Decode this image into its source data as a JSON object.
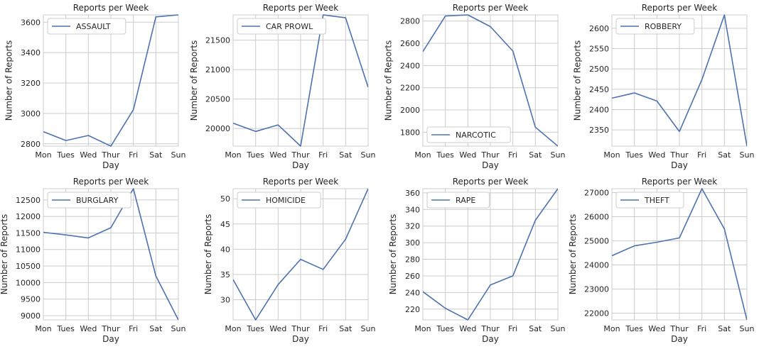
{
  "chart_data": [
    {
      "type": "line",
      "title": "Reports per Week",
      "xlabel": "Day",
      "ylabel": "Number of Reports",
      "categories": [
        "Mon",
        "Tues",
        "Wed",
        "Thur",
        "Fri",
        "Sat",
        "Sun"
      ],
      "series": [
        {
          "name": "ASSAULT",
          "values": [
            2880,
            2822,
            2855,
            2785,
            3025,
            3635,
            3648
          ]
        }
      ],
      "ylim": [
        2785,
        3648
      ],
      "yticks": [
        2800,
        3000,
        3200,
        3400,
        3600
      ],
      "legend": "top-left",
      "grid": true
    },
    {
      "type": "line",
      "title": "Reports per Week",
      "xlabel": "Day",
      "ylabel": "Number of Reports",
      "categories": [
        "Mon",
        "Tues",
        "Wed",
        "Thur",
        "Fri",
        "Sat",
        "Sun"
      ],
      "series": [
        {
          "name": "CAR PROWL",
          "values": [
            20090,
            19950,
            20060,
            19700,
            21930,
            21880,
            20700
          ]
        }
      ],
      "ylim": [
        19700,
        21930
      ],
      "yticks": [
        20000,
        20500,
        21000,
        21500
      ],
      "legend": "top-left",
      "grid": true
    },
    {
      "type": "line",
      "title": "Reports per Week",
      "xlabel": "Day",
      "ylabel": "Number of Reports",
      "categories": [
        "Mon",
        "Tues",
        "Wed",
        "Thur",
        "Fri",
        "Sat",
        "Sun"
      ],
      "series": [
        {
          "name": "NARCOTIC",
          "values": [
            2525,
            2845,
            2855,
            2750,
            2530,
            1845,
            1675
          ]
        }
      ],
      "ylim": [
        1675,
        2855
      ],
      "yticks": [
        1800,
        2000,
        2200,
        2400,
        2600,
        2800
      ],
      "legend": "bottom-left",
      "grid": true
    },
    {
      "type": "line",
      "title": "Reports per Week",
      "xlabel": "Day",
      "ylabel": "Number of Reports",
      "categories": [
        "Mon",
        "Tues",
        "Wed",
        "Thur",
        "Fri",
        "Sat",
        "Sun"
      ],
      "series": [
        {
          "name": "ROBBERY",
          "values": [
            2428,
            2441,
            2421,
            2346,
            2474,
            2633,
            2310
          ]
        }
      ],
      "ylim": [
        2310,
        2633
      ],
      "yticks": [
        2350,
        2400,
        2450,
        2500,
        2550,
        2600
      ],
      "legend": "top-left",
      "grid": true
    },
    {
      "type": "line",
      "title": "Reports per Week",
      "xlabel": "Day",
      "ylabel": "Number of Reports",
      "categories": [
        "Mon",
        "Tues",
        "Wed",
        "Thur",
        "Fri",
        "Sat",
        "Sun"
      ],
      "series": [
        {
          "name": "BURGLARY",
          "values": [
            11520,
            11440,
            11350,
            11660,
            12840,
            10200,
            8870
          ]
        }
      ],
      "ylim": [
        8870,
        12840
      ],
      "yticks": [
        9000,
        9500,
        10000,
        10500,
        11000,
        11500,
        12000,
        12500
      ],
      "legend": "top-left",
      "grid": true
    },
    {
      "type": "line",
      "title": "Reports per Week",
      "xlabel": "Day",
      "ylabel": "Number of Reports",
      "categories": [
        "Mon",
        "Tues",
        "Wed",
        "Thur",
        "Fri",
        "Sat",
        "Sun"
      ],
      "series": [
        {
          "name": "HOMICIDE",
          "values": [
            34,
            26,
            33,
            38,
            36,
            42,
            52
          ]
        }
      ],
      "ylim": [
        26,
        52
      ],
      "yticks": [
        30,
        35,
        40,
        45,
        50
      ],
      "legend": "top-left",
      "grid": true
    },
    {
      "type": "line",
      "title": "Reports per Week",
      "xlabel": "Day",
      "ylabel": "Number of Reports",
      "categories": [
        "Mon",
        "Tues",
        "Wed",
        "Thur",
        "Fri",
        "Sat",
        "Sun"
      ],
      "series": [
        {
          "name": "RAPE",
          "values": [
            241,
            221,
            207,
            249,
            260,
            327,
            365
          ]
        }
      ],
      "ylim": [
        207,
        365
      ],
      "yticks": [
        220,
        240,
        260,
        280,
        300,
        320,
        340,
        360
      ],
      "legend": "top-left",
      "grid": true
    },
    {
      "type": "line",
      "title": "Reports per Week",
      "xlabel": "Day",
      "ylabel": "Number of Reports",
      "categories": [
        "Mon",
        "Tues",
        "Wed",
        "Thur",
        "Fri",
        "Sat",
        "Sun"
      ],
      "series": [
        {
          "name": "THEFT",
          "values": [
            24380,
            24790,
            24940,
            25120,
            27160,
            25490,
            21720
          ]
        }
      ],
      "ylim": [
        21720,
        27160
      ],
      "yticks": [
        22000,
        23000,
        24000,
        25000,
        26000,
        27000
      ],
      "legend": "top-left",
      "grid": true
    }
  ],
  "colors": {
    "series": "#4c72b0",
    "grid": "#cccccc",
    "text": "#262626"
  }
}
